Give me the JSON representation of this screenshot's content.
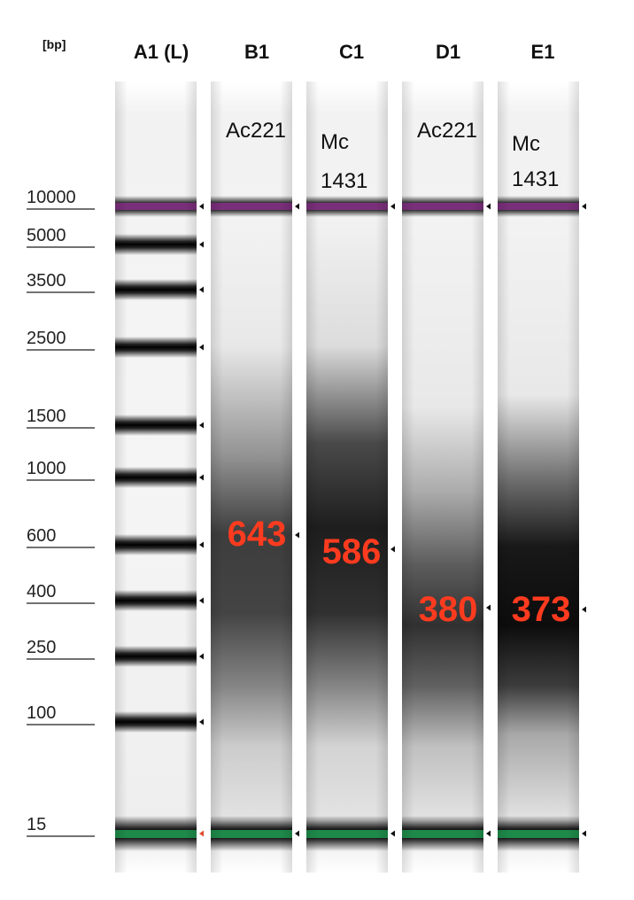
{
  "gel": {
    "unit_label": "[bp]",
    "ladder_sizes": [
      "10000",
      "5000",
      "3500",
      "2500",
      "1500",
      "1000",
      "600",
      "400",
      "250",
      "100",
      "15"
    ],
    "lanes": [
      {
        "id": "A1 (L)",
        "type": "ladder",
        "sample_name": []
      },
      {
        "id": "B1",
        "type": "sample",
        "sample_name": [
          "Ac221"
        ],
        "peak_bp": "643"
      },
      {
        "id": "C1",
        "type": "sample",
        "sample_name": [
          "Mc",
          "1431"
        ],
        "peak_bp": "586"
      },
      {
        "id": "D1",
        "type": "sample",
        "sample_name": [
          "Ac221"
        ],
        "peak_bp": "380"
      },
      {
        "id": "E1",
        "type": "sample",
        "sample_name": [
          "Mc",
          "1431"
        ],
        "peak_bp": "373"
      }
    ],
    "colors": {
      "upper_marker": "#7a2f7a",
      "lower_marker": "#1e8a4a",
      "peak_label": "#ff3b1f",
      "ladder_band": "#0a0a0a"
    }
  }
}
